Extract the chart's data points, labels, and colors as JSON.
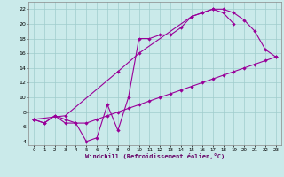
{
  "xlabel": "Windchill (Refroidissement éolien,°C)",
  "bg_color": "#caeaea",
  "grid_color": "#a0cccc",
  "line_color": "#990099",
  "xlim": [
    -0.5,
    23.5
  ],
  "ylim": [
    3.5,
    23.0
  ],
  "xtick_vals": [
    0,
    1,
    2,
    3,
    4,
    5,
    6,
    7,
    8,
    9,
    10,
    11,
    12,
    13,
    14,
    15,
    16,
    17,
    18,
    19,
    20,
    21,
    22,
    23
  ],
  "ytick_vals": [
    4,
    6,
    8,
    10,
    12,
    14,
    16,
    18,
    20,
    22
  ],
  "line1_x": [
    0,
    1,
    2,
    3,
    4,
    5,
    6,
    7,
    8,
    9,
    10,
    11,
    12,
    13,
    14,
    15,
    16,
    17,
    18,
    19
  ],
  "line1_y": [
    7.0,
    6.5,
    7.5,
    6.5,
    6.5,
    4.0,
    4.5,
    9.0,
    5.5,
    10.0,
    18.0,
    18.0,
    18.5,
    18.5,
    19.5,
    21.0,
    21.5,
    22.0,
    21.5,
    20.0
  ],
  "line2_x": [
    0,
    1,
    2,
    3,
    4,
    5,
    6,
    7,
    8,
    9,
    10,
    11,
    12,
    13,
    14,
    15,
    16,
    17,
    18,
    19,
    20,
    21,
    22,
    23
  ],
  "line2_y": [
    7.0,
    6.5,
    7.5,
    7.0,
    6.5,
    6.5,
    7.0,
    7.5,
    8.0,
    8.5,
    9.0,
    9.5,
    10.0,
    10.5,
    11.0,
    11.5,
    12.0,
    12.5,
    13.0,
    13.5,
    14.0,
    14.5,
    15.0,
    15.5
  ],
  "line3_x": [
    0,
    3,
    8,
    10,
    15,
    16,
    17,
    18,
    19,
    20,
    21,
    22,
    23
  ],
  "line3_y": [
    7.0,
    7.5,
    13.5,
    16.0,
    21.0,
    21.5,
    22.0,
    22.0,
    21.5,
    20.5,
    19.0,
    16.5,
    15.5
  ]
}
